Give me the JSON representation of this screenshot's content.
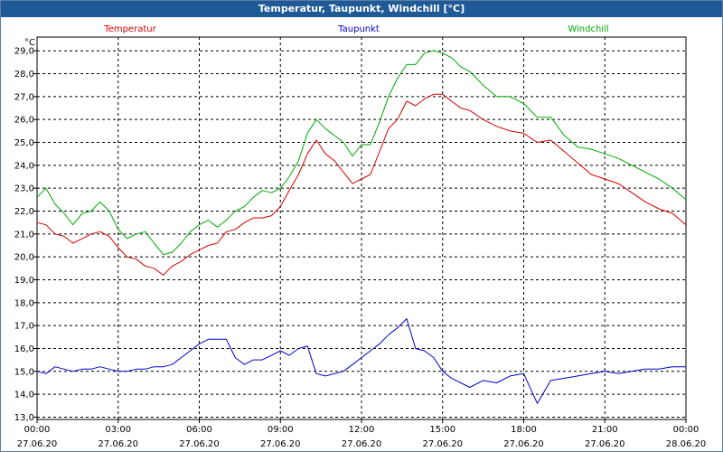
{
  "window_title": "Temperatur, Taupunkt, Windchill [°C]",
  "chart_data": {
    "type": "line",
    "title": "Temperatur, Taupunkt, Windchill [°C]",
    "ylabel": "°C",
    "ylim": [
      12.9,
      29.6
    ],
    "xlim": [
      0,
      24
    ],
    "grid": true,
    "y_ticks": [
      "13,0",
      "14,0",
      "15,0",
      "16,0",
      "17,0",
      "18,0",
      "19,0",
      "20,0",
      "21,0",
      "22,0",
      "23,0",
      "24,0",
      "25,0",
      "26,0",
      "27,0",
      "28,0",
      "29,0"
    ],
    "x_ticks": [
      {
        "time": "00:00",
        "date": "27.06.20"
      },
      {
        "time": "03:00",
        "date": "27.06.20"
      },
      {
        "time": "06:00",
        "date": "27.06.20"
      },
      {
        "time": "09:00",
        "date": "27.06.20"
      },
      {
        "time": "12:00",
        "date": "27.06.20"
      },
      {
        "time": "15:00",
        "date": "27.06.20"
      },
      {
        "time": "18:00",
        "date": "27.06.20"
      },
      {
        "time": "21:00",
        "date": "27.06.20"
      },
      {
        "time": "00:00",
        "date": "28.06.20"
      }
    ],
    "series": [
      {
        "name": "Temperatur",
        "color": "#d40000",
        "x": [
          0.0,
          0.33,
          0.67,
          1.0,
          1.33,
          1.67,
          2.0,
          2.33,
          2.67,
          3.0,
          3.33,
          3.67,
          4.0,
          4.33,
          4.67,
          5.0,
          5.33,
          5.67,
          6.0,
          6.33,
          6.67,
          7.0,
          7.33,
          7.67,
          8.0,
          8.33,
          8.67,
          9.0,
          9.33,
          9.67,
          10.0,
          10.33,
          10.67,
          11.0,
          11.33,
          11.67,
          12.0,
          12.33,
          12.67,
          13.0,
          13.33,
          13.67,
          14.0,
          14.33,
          14.67,
          15.0,
          15.33,
          15.67,
          16.0,
          16.5,
          17.0,
          17.5,
          18.0,
          18.5,
          19.0,
          19.5,
          20.0,
          20.5,
          21.0,
          21.5,
          22.0,
          22.5,
          23.0,
          23.5,
          24.0
        ],
        "values": [
          21.5,
          21.4,
          21.0,
          20.9,
          20.6,
          20.8,
          21.0,
          21.1,
          20.9,
          20.4,
          20.0,
          19.9,
          19.6,
          19.5,
          19.2,
          19.6,
          19.8,
          20.1,
          20.3,
          20.5,
          20.6,
          21.1,
          21.2,
          21.5,
          21.7,
          21.7,
          21.8,
          22.2,
          22.9,
          23.6,
          24.5,
          25.1,
          24.5,
          24.2,
          23.7,
          23.2,
          23.4,
          23.6,
          24.6,
          25.6,
          26.0,
          26.8,
          26.6,
          26.9,
          27.1,
          27.1,
          26.8,
          26.5,
          26.4,
          26.0,
          25.7,
          25.5,
          25.4,
          25.0,
          25.1,
          24.6,
          24.1,
          23.6,
          23.4,
          23.2,
          22.8,
          22.4,
          22.1,
          21.9,
          21.4
        ]
      },
      {
        "name": "Taupunkt",
        "color": "#0000c8",
        "x": [
          0.0,
          0.33,
          0.67,
          1.0,
          1.33,
          1.67,
          2.0,
          2.33,
          2.67,
          3.0,
          3.33,
          3.67,
          4.0,
          4.33,
          4.67,
          5.0,
          5.33,
          5.67,
          6.0,
          6.33,
          6.67,
          7.0,
          7.33,
          7.67,
          8.0,
          8.33,
          8.67,
          9.0,
          9.33,
          9.67,
          10.0,
          10.33,
          10.67,
          11.0,
          11.33,
          11.67,
          12.0,
          12.33,
          12.67,
          13.0,
          13.33,
          13.67,
          14.0,
          14.33,
          14.67,
          15.0,
          15.33,
          15.67,
          16.0,
          16.5,
          17.0,
          17.5,
          18.0,
          18.5,
          19.0,
          19.5,
          20.0,
          20.5,
          21.0,
          21.5,
          22.0,
          22.5,
          23.0,
          23.5,
          24.0
        ],
        "values": [
          15.0,
          14.9,
          15.2,
          15.1,
          15.0,
          15.1,
          15.1,
          15.2,
          15.1,
          15.0,
          15.0,
          15.1,
          15.1,
          15.2,
          15.2,
          15.3,
          15.6,
          15.9,
          16.2,
          16.4,
          16.4,
          16.4,
          15.6,
          15.3,
          15.5,
          15.5,
          15.7,
          15.9,
          15.7,
          16.0,
          16.1,
          14.9,
          14.8,
          14.9,
          15.0,
          15.3,
          15.6,
          15.9,
          16.2,
          16.6,
          16.9,
          17.3,
          16.0,
          15.9,
          15.6,
          15.0,
          14.7,
          14.5,
          14.3,
          14.6,
          14.5,
          14.8,
          14.9,
          13.6,
          14.6,
          14.7,
          14.8,
          14.9,
          15.0,
          14.9,
          15.0,
          15.1,
          15.1,
          15.2,
          15.2
        ]
      },
      {
        "name": "Windchill",
        "color": "#00aa00",
        "x": [
          0.0,
          0.33,
          0.67,
          1.0,
          1.33,
          1.67,
          2.0,
          2.33,
          2.67,
          3.0,
          3.33,
          3.67,
          4.0,
          4.33,
          4.67,
          5.0,
          5.33,
          5.67,
          6.0,
          6.33,
          6.67,
          7.0,
          7.33,
          7.67,
          8.0,
          8.33,
          8.67,
          9.0,
          9.33,
          9.67,
          10.0,
          10.33,
          10.67,
          11.0,
          11.33,
          11.67,
          12.0,
          12.33,
          12.67,
          13.0,
          13.33,
          13.67,
          14.0,
          14.33,
          14.67,
          15.0,
          15.33,
          15.67,
          16.0,
          16.5,
          17.0,
          17.5,
          18.0,
          18.5,
          19.0,
          19.5,
          20.0,
          20.5,
          21.0,
          21.5,
          22.0,
          22.5,
          23.0,
          23.5,
          24.0
        ],
        "values": [
          22.6,
          23.0,
          22.3,
          21.9,
          21.4,
          21.9,
          22.0,
          22.4,
          22.0,
          21.2,
          20.8,
          21.0,
          21.1,
          20.6,
          20.1,
          20.2,
          20.6,
          21.1,
          21.4,
          21.6,
          21.3,
          21.6,
          22.0,
          22.2,
          22.6,
          22.9,
          22.8,
          23.0,
          23.5,
          24.2,
          25.4,
          26.0,
          25.6,
          25.3,
          25.0,
          24.4,
          24.9,
          24.9,
          25.9,
          27.0,
          27.8,
          28.4,
          28.4,
          28.9,
          29.0,
          28.9,
          28.7,
          28.3,
          28.1,
          27.5,
          27.0,
          27.0,
          26.7,
          26.1,
          26.1,
          25.3,
          24.8,
          24.7,
          24.5,
          24.3,
          24.0,
          23.7,
          23.4,
          23.0,
          22.5
        ]
      }
    ]
  }
}
